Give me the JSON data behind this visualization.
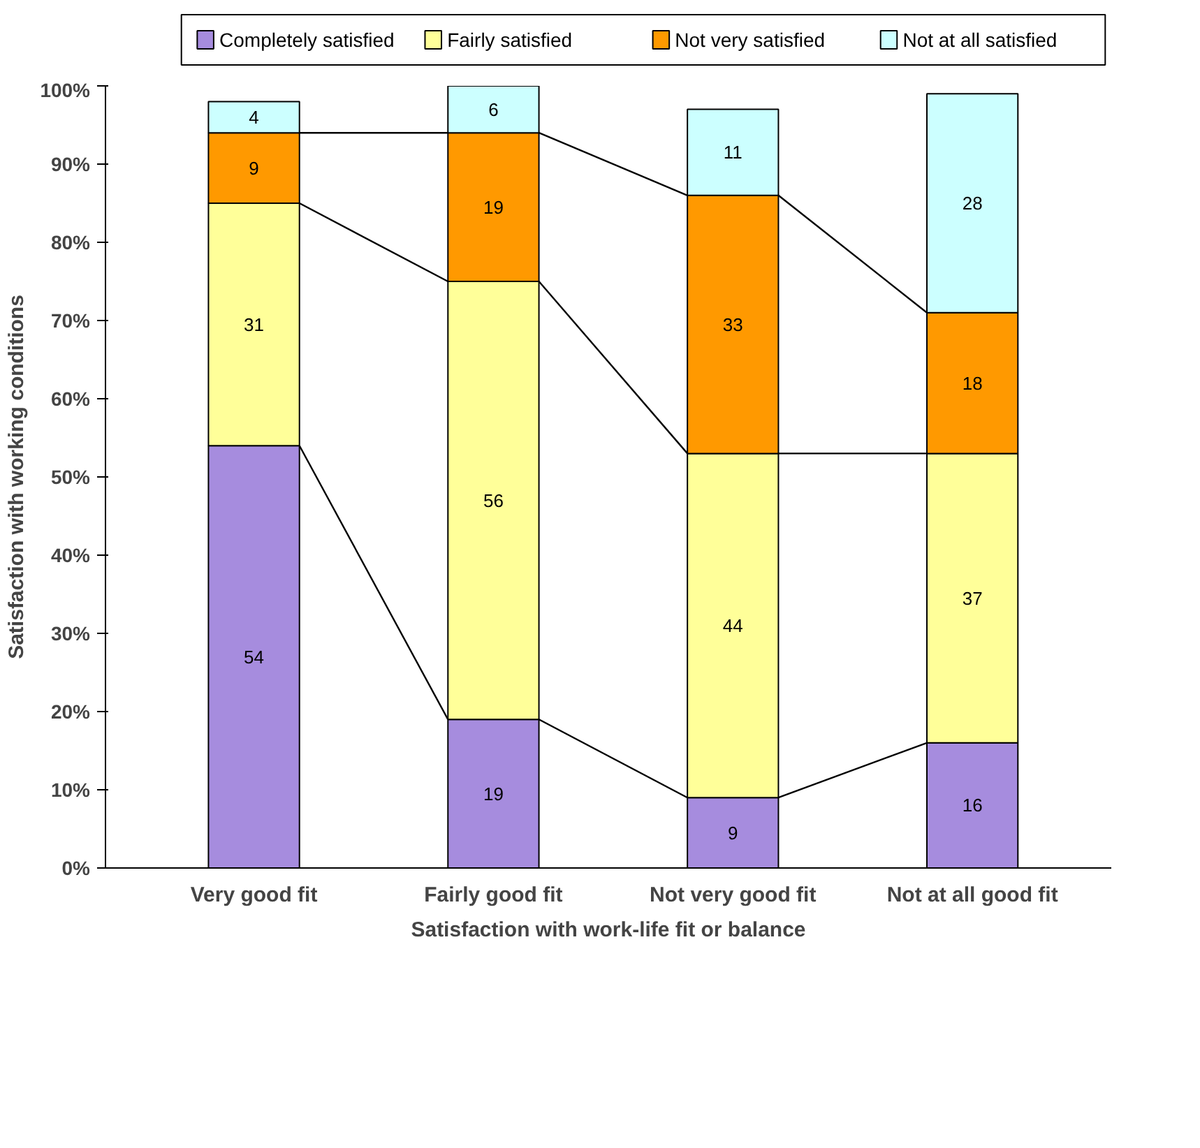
{
  "chart_data": {
    "type": "bar",
    "stacked": true,
    "xlabel": "Satisfaction with work-life fit or balance",
    "ylabel": "Satisfaction with working conditions",
    "categories": [
      "Very good fit",
      "Fairly good fit",
      "Not very good fit",
      "Not at all good fit"
    ],
    "series": [
      {
        "name": "Completely satisfied",
        "color": "#a68cde",
        "values": [
          54,
          19,
          9,
          16
        ]
      },
      {
        "name": "Fairly satisfied",
        "color": "#ffff99",
        "values": [
          31,
          56,
          44,
          37
        ]
      },
      {
        "name": "Not very satisfied",
        "color": "#ff9900",
        "values": [
          9,
          19,
          33,
          18
        ]
      },
      {
        "name": "Not at all satisfied",
        "color": "#ccffff",
        "values": [
          4,
          6,
          11,
          28
        ]
      }
    ],
    "ylim": [
      0,
      100
    ],
    "yticks": [
      {
        "value": 0,
        "label": "0%"
      },
      {
        "value": 10,
        "label": "10%"
      },
      {
        "value": 20,
        "label": "20%"
      },
      {
        "value": 30,
        "label": "30%"
      },
      {
        "value": 40,
        "label": "40%"
      },
      {
        "value": 50,
        "label": "50%"
      },
      {
        "value": 60,
        "label": "60%"
      },
      {
        "value": 70,
        "label": "70%"
      },
      {
        "value": 80,
        "label": "80%"
      },
      {
        "value": 90,
        "label": "90%"
      },
      {
        "value": 100,
        "label": "100%"
      }
    ],
    "data_labels": true,
    "grid": false,
    "legend": "top"
  }
}
